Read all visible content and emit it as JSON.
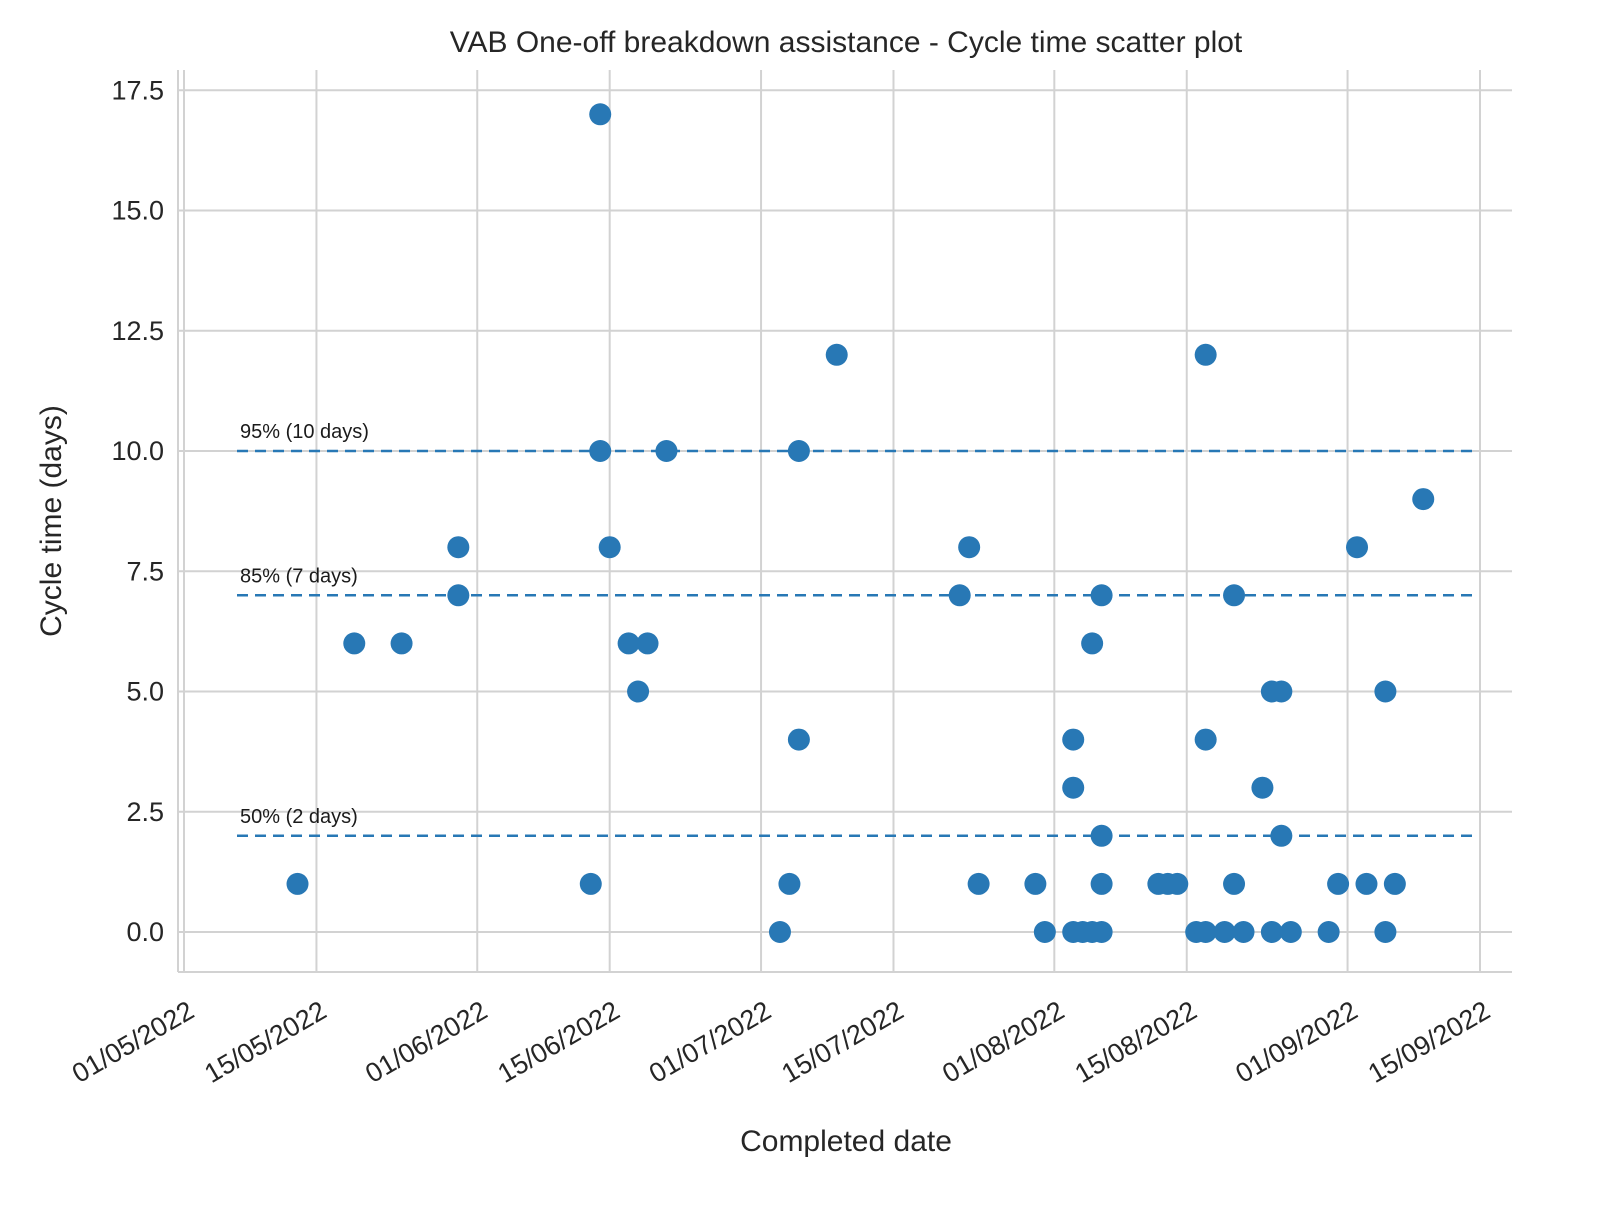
{
  "chart_data": {
    "type": "scatter",
    "title": "VAB One-off breakdown assistance - Cycle time scatter plot",
    "xlabel": "Completed date",
    "ylabel": "Cycle time (days)",
    "x_tick_labels": [
      "01/05/2022",
      "15/05/2022",
      "01/06/2022",
      "15/06/2022",
      "01/07/2022",
      "15/07/2022",
      "01/08/2022",
      "15/08/2022",
      "01/09/2022",
      "15/09/2022"
    ],
    "y_tick_labels": [
      "0.0",
      "2.5",
      "5.0",
      "7.5",
      "10.0",
      "12.5",
      "15.0",
      "17.5"
    ],
    "ylim": [
      -0.8,
      17.9
    ],
    "grid": true,
    "legend": "none",
    "marker_color": "#2878b5",
    "grid_color": "#d2d2d2",
    "text_color": "#262626",
    "percentile_lines": [
      {
        "label": "95% (10 days)",
        "y": 10
      },
      {
        "label": "85% (7 days)",
        "y": 7
      },
      {
        "label": "50% (2 days)",
        "y": 2
      }
    ],
    "points": [
      {
        "date": "13/05/2022",
        "y": 1
      },
      {
        "date": "19/05/2022",
        "y": 6
      },
      {
        "date": "24/05/2022",
        "y": 6
      },
      {
        "date": "30/05/2022",
        "y": 8
      },
      {
        "date": "30/05/2022",
        "y": 7
      },
      {
        "date": "13/06/2022",
        "y": 1
      },
      {
        "date": "14/06/2022",
        "y": 17
      },
      {
        "date": "14/06/2022",
        "y": 10
      },
      {
        "date": "15/06/2022",
        "y": 8
      },
      {
        "date": "17/06/2022",
        "y": 6
      },
      {
        "date": "19/06/2022",
        "y": 6
      },
      {
        "date": "18/06/2022",
        "y": 5
      },
      {
        "date": "21/06/2022",
        "y": 10
      },
      {
        "date": "03/07/2022",
        "y": 0
      },
      {
        "date": "04/07/2022",
        "y": 1
      },
      {
        "date": "05/07/2022",
        "y": 4
      },
      {
        "date": "05/07/2022",
        "y": 10
      },
      {
        "date": "09/07/2022",
        "y": 12
      },
      {
        "date": "23/07/2022",
        "y": 8
      },
      {
        "date": "22/07/2022",
        "y": 7
      },
      {
        "date": "24/07/2022",
        "y": 1
      },
      {
        "date": "30/07/2022",
        "y": 1
      },
      {
        "date": "31/07/2022",
        "y": 0
      },
      {
        "date": "03/08/2022",
        "y": 4
      },
      {
        "date": "03/08/2022",
        "y": 3
      },
      {
        "date": "03/08/2022",
        "y": 0
      },
      {
        "date": "04/08/2022",
        "y": 0
      },
      {
        "date": "05/08/2022",
        "y": 6
      },
      {
        "date": "05/08/2022",
        "y": 0
      },
      {
        "date": "06/08/2022",
        "y": 7
      },
      {
        "date": "06/08/2022",
        "y": 2
      },
      {
        "date": "06/08/2022",
        "y": 1
      },
      {
        "date": "06/08/2022",
        "y": 0
      },
      {
        "date": "12/08/2022",
        "y": 1
      },
      {
        "date": "13/08/2022",
        "y": 1
      },
      {
        "date": "14/08/2022",
        "y": 1
      },
      {
        "date": "16/08/2022",
        "y": 0
      },
      {
        "date": "17/08/2022",
        "y": 12
      },
      {
        "date": "17/08/2022",
        "y": 4
      },
      {
        "date": "17/08/2022",
        "y": 0
      },
      {
        "date": "19/08/2022",
        "y": 0
      },
      {
        "date": "20/08/2022",
        "y": 7
      },
      {
        "date": "20/08/2022",
        "y": 1
      },
      {
        "date": "21/08/2022",
        "y": 0
      },
      {
        "date": "23/08/2022",
        "y": 3
      },
      {
        "date": "24/08/2022",
        "y": 5
      },
      {
        "date": "25/08/2022",
        "y": 5
      },
      {
        "date": "24/08/2022",
        "y": 0
      },
      {
        "date": "25/08/2022",
        "y": 2
      },
      {
        "date": "26/08/2022",
        "y": 0
      },
      {
        "date": "30/08/2022",
        "y": 0
      },
      {
        "date": "31/08/2022",
        "y": 1
      },
      {
        "date": "02/09/2022",
        "y": 8
      },
      {
        "date": "03/09/2022",
        "y": 1
      },
      {
        "date": "05/09/2022",
        "y": 5
      },
      {
        "date": "05/09/2022",
        "y": 0
      },
      {
        "date": "06/09/2022",
        "y": 1
      },
      {
        "date": "09/09/2022",
        "y": 9
      }
    ]
  }
}
